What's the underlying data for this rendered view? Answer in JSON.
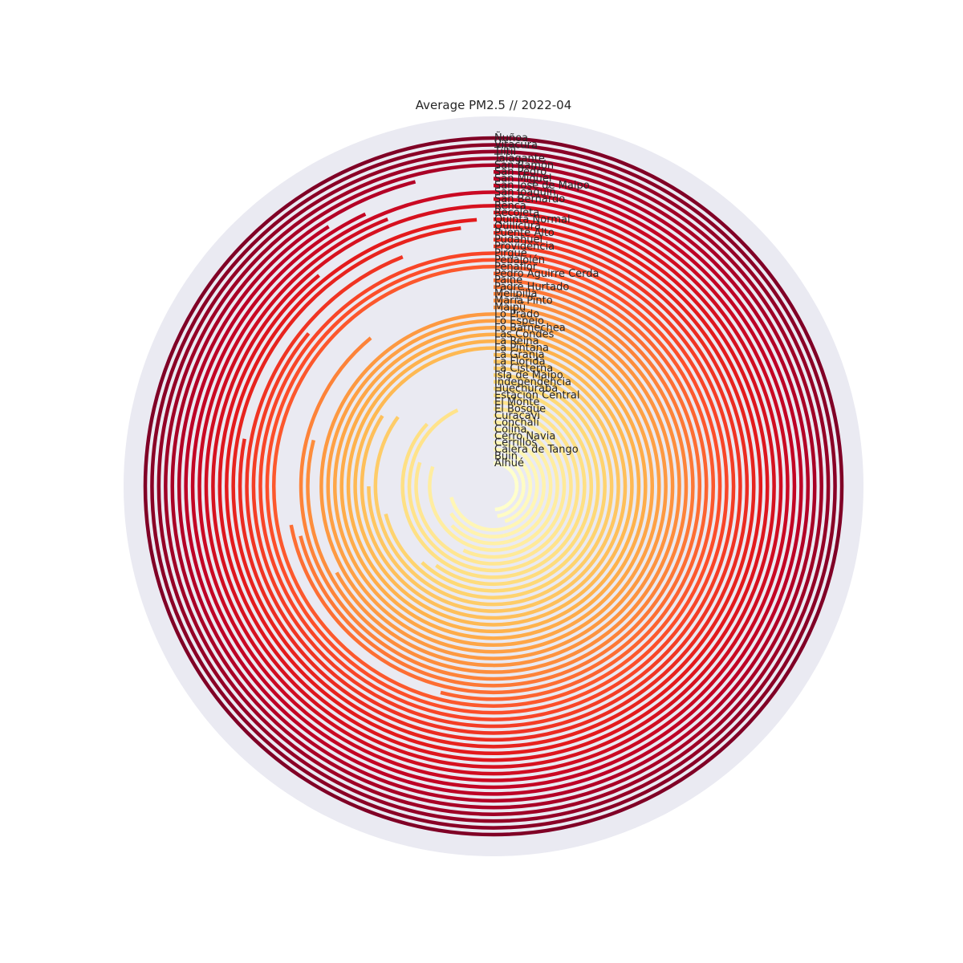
{
  "chart_data": {
    "type": "radial-bar",
    "title": "Average PM2.5 // 2022-04",
    "colormap": [
      "#ffffcc",
      "#ffeda0",
      "#fed976",
      "#feb24c",
      "#fd8d3c",
      "#fc4e2a",
      "#e31a1c",
      "#bd0026",
      "#800026"
    ],
    "background_disc_color": "#eaeaf2",
    "bars_clockwise_from_north": true,
    "axis_max": 100,
    "categories": [
      "Ñuñoa",
      "Vitacura",
      "Tiltil",
      "Talagante",
      "San Ramón",
      "San Pedro",
      "San Miguel",
      "San José de Maipo",
      "San Joaquín",
      "San Bernardo",
      "Renca",
      "Recoleta",
      "Quinta Normal",
      "Quilicura",
      "Puente Alto",
      "Pudahuel",
      "Providencia",
      "Pirque",
      "Peñalolén",
      "Peñaflor",
      "Pedro Aguirre Cerda",
      "Paine",
      "Padre Hurtado",
      "Melipilla",
      "María Pinto",
      "Maipú",
      "Lo Prado",
      "Lo Espejo",
      "Lo Barnechea",
      "Las Condes",
      "La Reina",
      "La Pintana",
      "La Granja",
      "La Florida",
      "La Cisterna",
      "Isla de Maipo",
      "Independencia",
      "Huechuraba",
      "Estación Central",
      "El Monte",
      "El Bosque",
      "Curacaví",
      "Conchalí",
      "Colina",
      "Cerro Navia",
      "Cerrillos",
      "Calera de Tango",
      "Buin",
      "Alhué"
    ],
    "values": [
      100,
      100,
      100,
      100,
      100,
      96,
      91,
      93,
      100,
      94,
      100,
      89,
      99,
      98,
      78,
      94,
      86,
      100,
      100,
      100,
      54,
      72,
      71,
      89,
      79,
      67,
      100,
      100,
      100,
      100,
      100,
      100,
      84,
      75,
      85,
      71,
      62,
      60,
      87,
      93,
      80,
      57,
      80,
      63,
      66,
      71,
      45,
      48,
      49
    ]
  }
}
